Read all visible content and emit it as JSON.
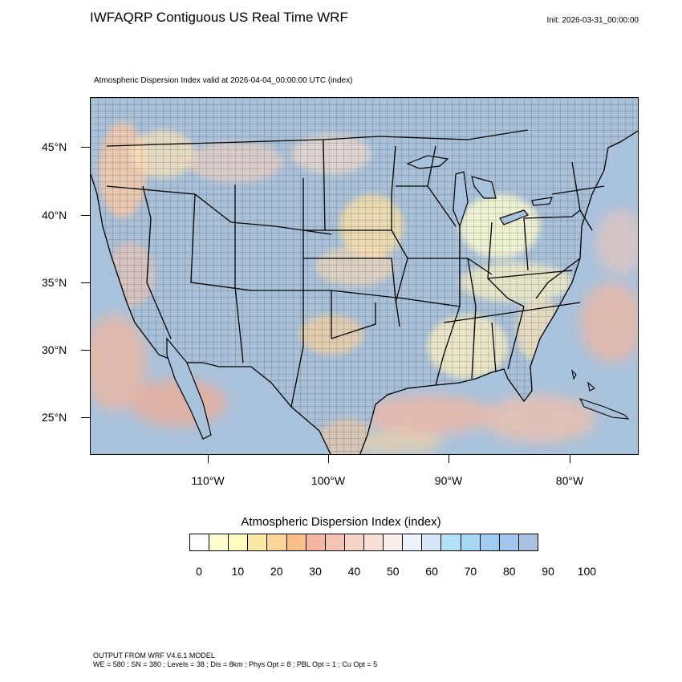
{
  "header": {
    "title": "IWFAQRP Contiguous US Real Time WRF",
    "init": "Init: 2026-03-31_00:00:00",
    "subtitle": "Atmospheric Dispersion Index valid at 2026-04-04_00:00:00 UTC   (index)"
  },
  "map": {
    "lat_labels": [
      "45°N",
      "40°N",
      "35°N",
      "30°N",
      "25°N"
    ],
    "lon_labels": [
      "110°W",
      "100°W",
      "90°W",
      "80°W"
    ],
    "ocean_color": "#a9c2dc",
    "land_color": "#a8c0d8"
  },
  "colorbar": {
    "title": "Atmospheric Dispersion Index  (index)",
    "labels": [
      "0",
      "10",
      "20",
      "30",
      "40",
      "50",
      "60",
      "70",
      "80",
      "90",
      "100"
    ],
    "colors": [
      "#ffffff",
      "#fefecf",
      "#fefdbc",
      "#fde9a6",
      "#fcd495",
      "#f9c089",
      "#f5b7a3",
      "#f3c3b5",
      "#f5d3c7",
      "#f7e0d6",
      "#fbeeea",
      "#eef3fb",
      "#d6e8f8",
      "#b3e1f8",
      "#a5d8f5",
      "#9fcdf2",
      "#a4c6ee",
      "#a9c2e2"
    ]
  },
  "footer": {
    "line1": "OUTPUT FROM WRF V4.6.1 MODEL",
    "line2": "WE = 580 ; SN = 380 ; Levels = 38 ; Dis = 8km ; Phys Opt = 8 ; PBL Opt = 1 ; Cu Opt = 5"
  }
}
